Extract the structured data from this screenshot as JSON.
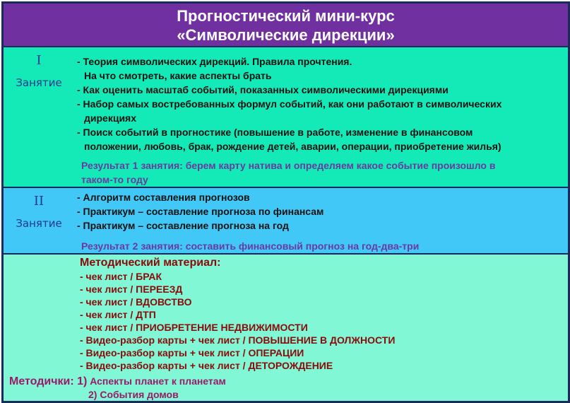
{
  "header": {
    "line1": "Прогностический мини-курс",
    "line2": "«Символические дирекции»"
  },
  "lesson1": {
    "number": "I",
    "label": "Занятие",
    "items": [
      "- Теория символических дирекций. Правила прочтения.",
      "На что смотреть, какие аспекты брать",
      "- Как оценить масштаб событий, показанных символическими дирекциями",
      "- Набор самых востребованных формул событий, как они работают в символических",
      "дирекциях",
      "- Поиск событий в прогностике (повышение в работе, изменение в финансовом",
      "положении, любовь, брак, рождение детей, аварии, операции, приобретение жилья)"
    ],
    "result": [
      "Результат 1 занятия: берем карту натива и определяем какое событие произошло в",
      "таком-то году"
    ]
  },
  "lesson2": {
    "number": "II",
    "label": "Занятие",
    "items": [
      "- Алгоритм составления прогнозов",
      "- Практикум – составление прогноза по финансам",
      "- Практикум – составление прогноза на год"
    ],
    "result": "Результат 2 занятия: составить финансовый прогноз на год-два-три"
  },
  "materials": {
    "title": "Методический материал:",
    "items": [
      "- чек лист / БРАК",
      "- чек лист / ПЕРЕЕЗД",
      "- чек лист / ВДОВСТВО",
      "- чек лист / ДТП",
      "- чек лист / ПРИОБРЕТЕНИЕ НЕДВИЖИМОСТИ",
      "- Видео-разбор карты + чек лист / ПОВЫШЕНИЕ В ДОЛЖНОСТИ",
      "- Видео-разбор карты + чек лист / ОПЕРАЦИИ",
      "- Видео-разбор карты + чек лист / ДЕТОРОЖДЕНИЕ"
    ],
    "manuals_label": "Методички: 1)",
    "manual1": "Аспекты планет к планетам",
    "manual2": "2) События домов"
  },
  "colors": {
    "header": "#7030a0",
    "lesson1": "#14eab8",
    "lesson2": "#42c8f6",
    "materials": "#82f7d6"
  }
}
